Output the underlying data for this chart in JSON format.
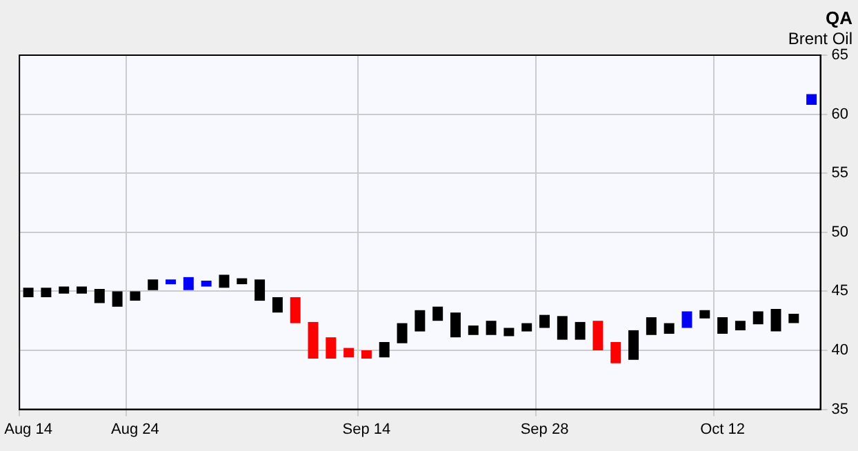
{
  "chart_data": {
    "type": "bar",
    "title": "QA",
    "subtitle": "Brent Oil",
    "categories": [
      "Aug 14",
      null,
      null,
      null,
      null,
      null,
      "Aug 24",
      null,
      null,
      null,
      null,
      null,
      null,
      null,
      null,
      null,
      null,
      null,
      null,
      "Sep 14",
      null,
      null,
      null,
      null,
      null,
      null,
      null,
      null,
      null,
      "Sep 28",
      null,
      null,
      null,
      null,
      null,
      null,
      null,
      null,
      null,
      "Oct 12",
      null,
      null,
      null,
      null,
      null
    ],
    "base": [
      44.5,
      44.5,
      44.8,
      44.8,
      44.0,
      43.7,
      44.2,
      45.1,
      45.6,
      45.1,
      45.4,
      45.3,
      45.6,
      44.2,
      43.2,
      42.3,
      39.3,
      39.3,
      39.4,
      39.3,
      39.4,
      40.6,
      41.6,
      42.5,
      41.1,
      41.3,
      41.3,
      41.2,
      41.6,
      41.9,
      40.9,
      40.9,
      40.0,
      38.9,
      39.2,
      41.3,
      41.4,
      41.9,
      42.7,
      41.4,
      41.7,
      42.2,
      41.6,
      42.3,
      60.8
    ],
    "values": [
      0.8,
      0.8,
      0.6,
      0.6,
      1.2,
      1.3,
      0.8,
      0.9,
      0.4,
      1.1,
      0.5,
      1.1,
      0.5,
      1.8,
      1.3,
      2.2,
      3.1,
      1.8,
      0.8,
      0.7,
      1.3,
      1.7,
      1.8,
      1.2,
      2.1,
      0.8,
      1.2,
      0.7,
      0.7,
      1.1,
      2.0,
      1.5,
      2.5,
      1.8,
      2.5,
      1.5,
      0.9,
      1.4,
      0.7,
      1.4,
      0.8,
      1.1,
      1.9,
      0.8,
      0.9
    ],
    "colors": [
      "#000000",
      "#000000",
      "#000000",
      "#000000",
      "#000000",
      "#000000",
      "#000000",
      "#000000",
      "#0000ff",
      "#0000ff",
      "#0000ff",
      "#000000",
      "#000000",
      "#000000",
      "#000000",
      "#ff0000",
      "#ff0000",
      "#ff0000",
      "#ff0000",
      "#ff0000",
      "#000000",
      "#000000",
      "#000000",
      "#000000",
      "#000000",
      "#000000",
      "#000000",
      "#000000",
      "#000000",
      "#000000",
      "#000000",
      "#000000",
      "#ff0000",
      "#ff0000",
      "#000000",
      "#000000",
      "#000000",
      "#0000ff",
      "#000000",
      "#000000",
      "#000000",
      "#000000",
      "#000000",
      "#000000",
      "#0000ff"
    ],
    "ylim": [
      35,
      65
    ],
    "yticks": [
      35,
      40,
      45,
      50,
      55,
      60,
      65
    ],
    "grid": true,
    "legend": false
  }
}
